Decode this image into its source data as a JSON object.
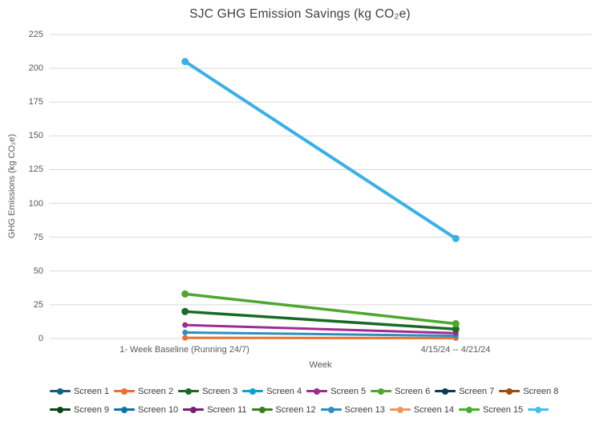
{
  "page": {
    "background": "#ffffff"
  },
  "chart_data": {
    "type": "line",
    "title": "SJC GHG Emission Savings (kg CO₂e)",
    "xlabel": "Week",
    "ylabel": "GHG Emissions (kg CO₂e)",
    "categories": [
      "1- Week Baseline (Running 24/7)",
      "4/15/24 -- 4/21/24"
    ],
    "ylim": [
      0,
      225
    ],
    "yticks": [
      0,
      25,
      50,
      75,
      100,
      125,
      150,
      175,
      200,
      225
    ],
    "grid": true,
    "grid_color": "#d9d9d9",
    "legend_position": "bottom",
    "marker": "circle",
    "visible_lines": [
      {
        "name": "orange-line",
        "color": "#E97132",
        "values": [
          0.5,
          0.3
        ],
        "width": 3,
        "marker_r": 3.5
      },
      {
        "name": "blue-line",
        "color": "#2E8FC0",
        "values": [
          4.5,
          2
        ],
        "width": 3,
        "marker_r": 3.5
      },
      {
        "name": "magenta-line",
        "color": "#A02B93",
        "values": [
          10,
          4
        ],
        "width": 3,
        "marker_r": 3.5
      },
      {
        "name": "dark-green-line",
        "color": "#196B24",
        "values": [
          20,
          7
        ],
        "width": 3.5,
        "marker_r": 4.5
      },
      {
        "name": "light-green-line",
        "color": "#4EA72E",
        "values": [
          33,
          11
        ],
        "width": 3.5,
        "marker_r": 4.5
      },
      {
        "name": "cyan-line",
        "color": "#38B1E8",
        "values": [
          205,
          74
        ],
        "width": 4,
        "marker_r": 4.5
      }
    ],
    "legend": [
      {
        "label": "Screen 1",
        "color": "#156082"
      },
      {
        "label": "Screen 2",
        "color": "#E97132"
      },
      {
        "label": "Screen 3",
        "color": "#196B24"
      },
      {
        "label": "Screen 4",
        "color": "#0F9ED5"
      },
      {
        "label": "Screen 5",
        "color": "#A02B93"
      },
      {
        "label": "Screen 6",
        "color": "#4EA72E"
      },
      {
        "label": "Screen 7",
        "color": "#0D3C51"
      },
      {
        "label": "Screen 8",
        "color": "#9E4B10"
      },
      {
        "label": "Screen 9",
        "color": "#0E4419"
      },
      {
        "label": "Screen 10",
        "color": "#0B76A0"
      },
      {
        "label": "Screen 11",
        "color": "#78206E"
      },
      {
        "label": "Screen 12",
        "color": "#3B7D22"
      },
      {
        "label": "Screen 13",
        "color": "#2E8FC0"
      },
      {
        "label": "Screen 14",
        "color": "#F0975A"
      },
      {
        "label": "Screen 15",
        "color": "#43B02A"
      },
      {
        "label": "",
        "color": "#47BFEE"
      }
    ]
  }
}
